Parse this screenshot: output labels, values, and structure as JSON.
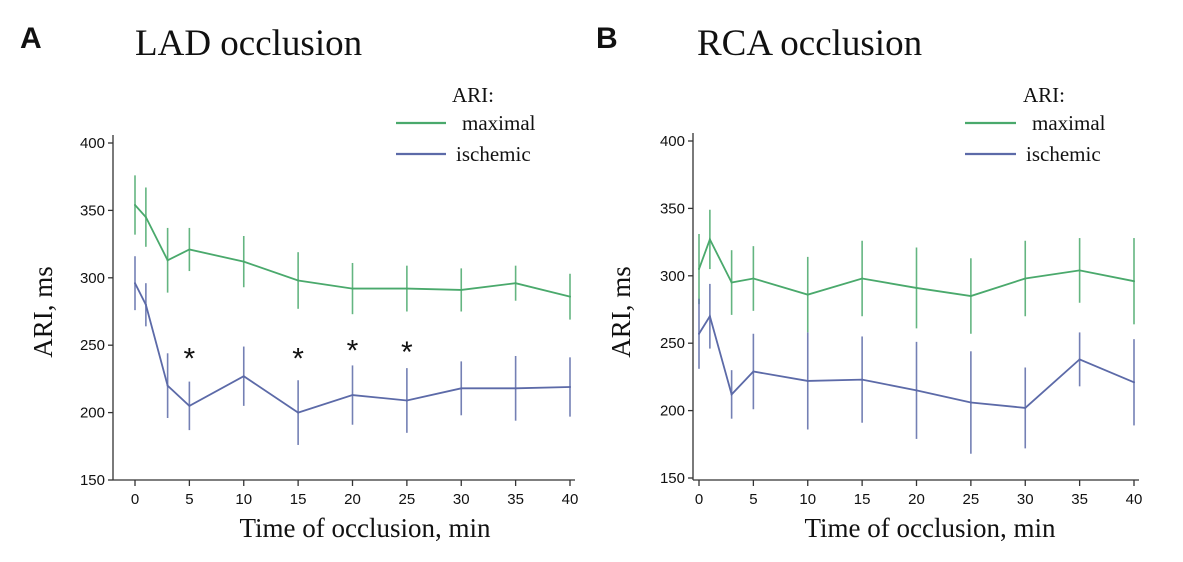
{
  "chart_data": [
    {
      "type": "line",
      "panel": "A",
      "title": "LAD occlusion",
      "xlabel": "Time of occlusion, min",
      "ylabel": "ARI, ms",
      "x": [
        0,
        1,
        3,
        5,
        10,
        15,
        20,
        25,
        30,
        35,
        40
      ],
      "xticks": [
        0,
        5,
        10,
        15,
        20,
        25,
        30,
        35,
        40
      ],
      "yticks": [
        150,
        200,
        250,
        300,
        350,
        400
      ],
      "ylim": [
        150,
        400
      ],
      "xlim": [
        0,
        40
      ],
      "legend_title": "ARI:",
      "legend_position": "top-right",
      "series": [
        {
          "name": "maximal",
          "color": "#4aa96c",
          "values": [
            354,
            345,
            313,
            321,
            312,
            298,
            292,
            292,
            291,
            296,
            286
          ],
          "errors": [
            22,
            22,
            24,
            16,
            19,
            21,
            19,
            17,
            16,
            13,
            17
          ]
        },
        {
          "name": "ischemic",
          "color": "#5c6aa8",
          "values": [
            296,
            280,
            220,
            205,
            227,
            200,
            213,
            209,
            218,
            218,
            219
          ],
          "errors": [
            20,
            16,
            24,
            18,
            22,
            24,
            22,
            24,
            20,
            24,
            22
          ]
        }
      ],
      "annotations": [
        {
          "x": 5,
          "y": 243,
          "text": "*"
        },
        {
          "x": 15,
          "y": 243,
          "text": "*"
        },
        {
          "x": 20,
          "y": 249,
          "text": "*"
        },
        {
          "x": 25,
          "y": 248,
          "text": "*"
        }
      ]
    },
    {
      "type": "line",
      "panel": "B",
      "title": "RCA occlusion",
      "xlabel": "Time of occlusion, min",
      "ylabel": "ARI, ms",
      "x": [
        0,
        1,
        3,
        5,
        10,
        15,
        20,
        25,
        30,
        35,
        40
      ],
      "xticks": [
        0,
        5,
        10,
        15,
        20,
        25,
        30,
        35,
        40
      ],
      "yticks": [
        150,
        200,
        250,
        300,
        350,
        400
      ],
      "ylim": [
        150,
        400
      ],
      "xlim": [
        0,
        40
      ],
      "legend_title": "ARI:",
      "legend_position": "top-right",
      "series": [
        {
          "name": "maximal",
          "color": "#4aa96c",
          "values": [
            305,
            327,
            295,
            298,
            286,
            298,
            291,
            285,
            298,
            304,
            296
          ],
          "errors": [
            26,
            22,
            24,
            24,
            28,
            28,
            30,
            28,
            28,
            24,
            32
          ]
        },
        {
          "name": "ischemic",
          "color": "#5c6aa8",
          "values": [
            257,
            270,
            212,
            229,
            222,
            223,
            215,
            206,
            202,
            238,
            221
          ],
          "errors": [
            26,
            24,
            18,
            28,
            36,
            32,
            36,
            38,
            30,
            20,
            32
          ]
        }
      ],
      "annotations": []
    }
  ]
}
